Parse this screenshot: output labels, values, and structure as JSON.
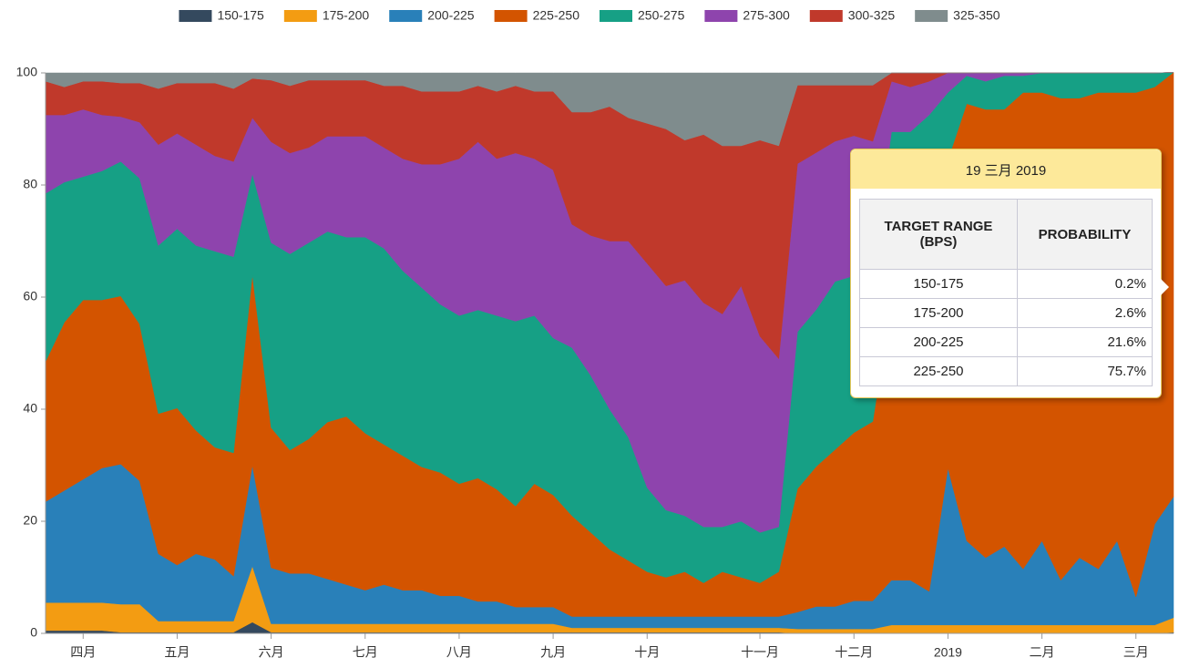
{
  "chart_data": {
    "type": "stacked-area",
    "categories": [
      null,
      null,
      "四月",
      null,
      null,
      null,
      null,
      "五月",
      null,
      null,
      null,
      null,
      "六月",
      null,
      null,
      null,
      null,
      "七月",
      null,
      null,
      null,
      null,
      "八月",
      null,
      null,
      null,
      null,
      "九月",
      null,
      null,
      null,
      null,
      "十月",
      null,
      null,
      null,
      null,
      null,
      "十一月",
      null,
      null,
      null,
      null,
      "十二月",
      null,
      null,
      null,
      null,
      "2019",
      null,
      null,
      null,
      null,
      "二月",
      null,
      null,
      null,
      null,
      "三月",
      null,
      null
    ],
    "series": [
      {
        "name": "150-175",
        "color": "#34495e",
        "values": [
          0.5,
          0.5,
          0.5,
          0.5,
          0.2,
          0.2,
          0.2,
          0.2,
          0.2,
          0.2,
          0.2,
          2,
          0.2,
          0.2,
          0.2,
          0.2,
          0.2,
          0.2,
          0.2,
          0.2,
          0.2,
          0.2,
          0.2,
          0.2,
          0.2,
          0.2,
          0.2,
          0.2,
          0.2,
          0.2,
          0.2,
          0.2,
          0.2,
          0.2,
          0.2,
          0.2,
          0.2,
          0.2,
          0.2,
          0.2,
          0,
          0,
          0,
          0,
          0,
          0,
          0,
          0,
          0,
          0,
          0,
          0,
          0,
          0,
          0,
          0,
          0,
          0,
          0,
          0,
          0.2
        ]
      },
      {
        "name": "175-200",
        "color": "#f39c12",
        "values": [
          5,
          5,
          5,
          5,
          5,
          5,
          2,
          2,
          2,
          2,
          2,
          10,
          1.5,
          1.5,
          1.5,
          1.5,
          1.5,
          1.5,
          1.5,
          1.5,
          1.5,
          1.5,
          1.5,
          1.5,
          1.5,
          1.5,
          1.5,
          1.5,
          0.8,
          0.8,
          0.8,
          0.8,
          0.8,
          0.8,
          0.8,
          0.8,
          0.8,
          0.8,
          0.8,
          0.8,
          0.8,
          0.8,
          0.8,
          0.8,
          0.8,
          1.5,
          1.5,
          1.5,
          1.5,
          1.5,
          1.5,
          1.5,
          1.5,
          1.5,
          1.5,
          1.5,
          1.5,
          1.5,
          1.5,
          1.5,
          2.6
        ]
      },
      {
        "name": "200-225",
        "color": "#2980b9",
        "values": [
          18,
          20,
          22,
          24,
          25,
          22,
          12,
          10,
          12,
          11,
          8,
          18,
          10,
          9,
          9,
          8,
          7,
          6,
          7,
          6,
          6,
          5,
          5,
          4,
          4,
          3,
          3,
          3,
          2,
          2,
          2,
          2,
          2,
          2,
          2,
          2,
          2,
          2,
          2,
          2,
          3,
          4,
          4,
          5,
          5,
          8,
          8,
          6,
          28,
          15,
          12,
          14,
          10,
          15,
          8,
          12,
          10,
          15,
          5,
          18,
          21.6
        ]
      },
      {
        "name": "225-250",
        "color": "#d35400",
        "values": [
          25,
          30,
          32,
          30,
          30,
          28,
          25,
          28,
          22,
          20,
          22,
          34,
          25,
          22,
          24,
          28,
          30,
          28,
          25,
          24,
          22,
          22,
          20,
          22,
          20,
          18,
          22,
          20,
          18,
          15,
          12,
          10,
          8,
          7,
          8,
          6,
          8,
          7,
          6,
          8,
          22,
          25,
          28,
          30,
          32,
          50,
          60,
          70,
          55,
          78,
          80,
          78,
          85,
          80,
          86,
          82,
          85,
          80,
          90,
          78,
          75.7
        ]
      },
      {
        "name": "250-275",
        "color": "#16a085",
        "values": [
          30,
          25,
          22,
          23,
          24,
          26,
          30,
          32,
          33,
          35,
          35,
          18,
          33,
          35,
          35,
          34,
          32,
          35,
          35,
          33,
          32,
          30,
          30,
          30,
          31,
          33,
          30,
          28,
          30,
          28,
          25,
          22,
          15,
          12,
          10,
          10,
          8,
          10,
          9,
          8,
          28,
          28,
          30,
          28,
          28,
          30,
          20,
          15,
          12,
          5,
          5,
          6,
          3,
          3.5,
          4.5,
          4.5,
          3.5,
          3.5,
          3.5,
          2.5,
          0
        ]
      },
      {
        "name": "275-300",
        "color": "#8e44ad",
        "values": [
          14,
          12,
          12,
          10,
          8,
          10,
          18,
          17,
          18,
          17,
          17,
          10,
          18,
          18,
          17,
          17,
          18,
          18,
          18,
          20,
          22,
          25,
          28,
          30,
          28,
          30,
          28,
          30,
          22,
          25,
          30,
          35,
          40,
          40,
          42,
          40,
          38,
          42,
          35,
          30,
          30,
          28,
          25,
          25,
          22,
          9,
          8,
          6,
          3.5,
          0.5,
          1.5,
          0.5,
          0.5,
          0,
          0,
          0,
          0,
          0,
          0,
          0,
          0
        ]
      },
      {
        "name": "300-325",
        "color": "#c0392b",
        "values": [
          6,
          5,
          5,
          6,
          6,
          7,
          10,
          9,
          11,
          13,
          13,
          7,
          11,
          12,
          12,
          10,
          10,
          10,
          11,
          13,
          13,
          13,
          12,
          10,
          12,
          12,
          12,
          14,
          20,
          22,
          24,
          22,
          25,
          28,
          25,
          30,
          30,
          25,
          35,
          38,
          14,
          12,
          10,
          9,
          10,
          1.5,
          2.5,
          1.5,
          0,
          0,
          0,
          0,
          0,
          0,
          0,
          0,
          0,
          0,
          0,
          0,
          0
        ]
      },
      {
        "name": "325-350",
        "color": "#7f8c8d",
        "values": [
          1.5,
          2.5,
          1.5,
          1.5,
          1.8,
          1.8,
          2.8,
          1.8,
          1.8,
          1.8,
          2.8,
          1,
          1.3,
          2.3,
          1.3,
          1.3,
          1.3,
          1.3,
          2.3,
          2.3,
          3.3,
          3.3,
          3.3,
          2.3,
          3.3,
          2.3,
          3.3,
          3.3,
          7,
          7,
          6,
          8,
          9,
          10,
          12,
          11,
          13,
          13,
          12,
          13,
          2.2,
          2.2,
          2.2,
          2.2,
          2.2,
          0,
          0,
          0,
          0,
          0,
          0,
          0,
          0,
          0,
          0,
          0,
          0,
          0,
          0,
          0,
          0
        ]
      }
    ],
    "ylim": [
      0,
      100
    ],
    "yticks": [
      0,
      20,
      40,
      60,
      80,
      100
    ],
    "legend": "top",
    "tooltip": {
      "title": "19 三月 2019",
      "columns": [
        "TARGET RANGE (BPS)",
        "PROBABILITY"
      ],
      "rows": [
        [
          "150-175",
          "0.2%"
        ],
        [
          "175-200",
          "2.6%"
        ],
        [
          "200-225",
          "21.6%"
        ],
        [
          "225-250",
          "75.7%"
        ]
      ]
    }
  }
}
